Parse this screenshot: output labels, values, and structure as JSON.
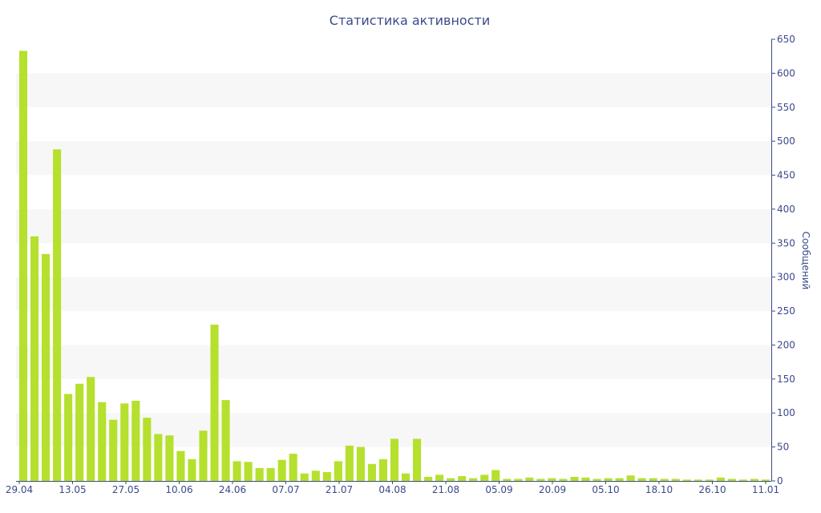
{
  "chart_data": {
    "type": "bar",
    "title": "Статистика активности",
    "ylabel": "Сообщений",
    "xlabel": "",
    "ylim": [
      0,
      650
    ],
    "y_ticks": [
      0,
      50,
      100,
      150,
      200,
      250,
      300,
      350,
      400,
      450,
      500,
      550,
      600,
      650
    ],
    "y_axis_side": "right",
    "grid": "alternating horizontal bands",
    "x_tick_labels": [
      "29.04",
      "13.05",
      "27.05",
      "10.06",
      "24.06",
      "07.07",
      "21.07",
      "04.08",
      "21.08",
      "05.09",
      "20.09",
      "05.10",
      "18.10",
      "26.10",
      "11.01"
    ],
    "values": [
      633,
      360,
      334,
      488,
      128,
      143,
      153,
      116,
      90,
      114,
      118,
      93,
      69,
      67,
      44,
      32,
      74,
      230,
      119,
      29,
      28,
      19,
      19,
      31,
      40,
      11,
      15,
      13,
      29,
      52,
      50,
      25,
      32,
      62,
      11,
      62,
      6,
      9,
      4,
      7,
      4,
      9,
      16,
      3,
      3,
      5,
      3,
      4,
      3,
      6,
      5,
      3,
      4,
      4,
      8,
      4,
      4,
      3,
      3,
      2,
      2,
      2,
      5,
      3,
      2,
      3,
      2
    ],
    "colors": {
      "bar": "#b5e02e",
      "text": "#3b4a8a",
      "band": "#f7f7f7",
      "axis": "#3b4a8a"
    }
  }
}
